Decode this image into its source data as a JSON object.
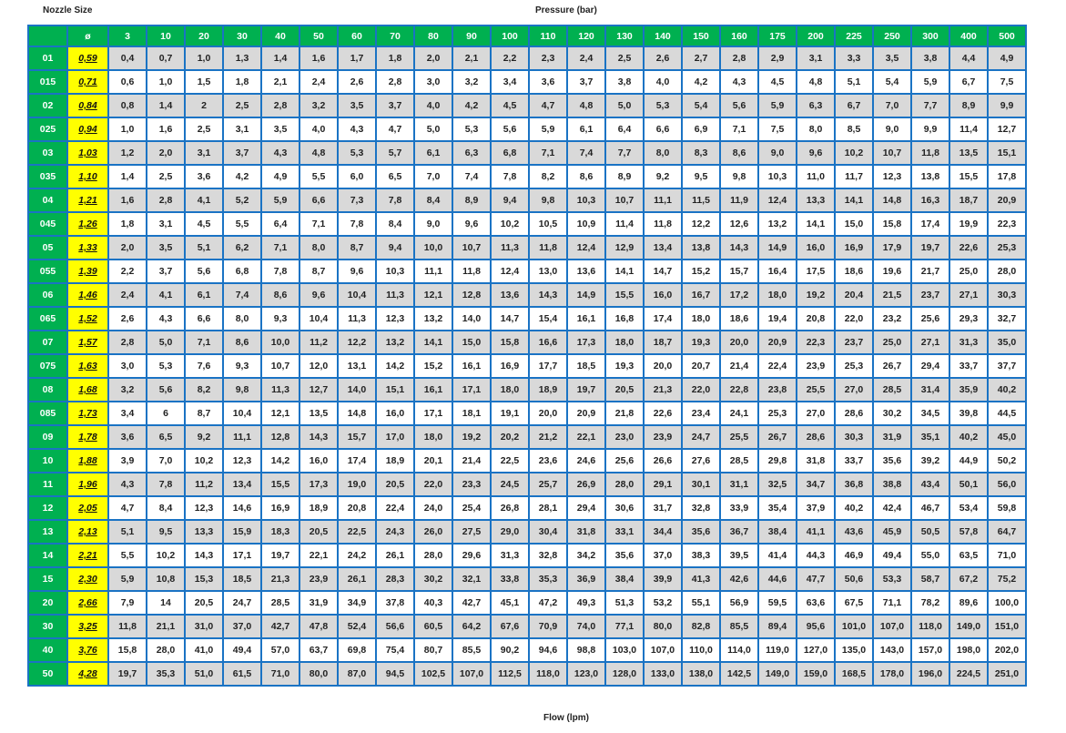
{
  "labels": {
    "nozzle_size": "Nozzle Size",
    "pressure": "Pressure (bar)",
    "flow": "Flow (lpm)",
    "diameter_symbol": "ø"
  },
  "colors": {
    "header_green": "#00b050",
    "diameter_yellow": "#ffff00",
    "grid_blue": "#1a73c4",
    "row_grey": "#d9d9d9"
  },
  "pressures": [
    "3",
    "10",
    "20",
    "30",
    "40",
    "50",
    "60",
    "70",
    "80",
    "90",
    "100",
    "110",
    "120",
    "130",
    "140",
    "150",
    "160",
    "175",
    "200",
    "225",
    "250",
    "300",
    "400",
    "500"
  ],
  "rows": [
    {
      "nozzle": "01",
      "diameter": "0,59",
      "flows": [
        "0,4",
        "0,7",
        "1,0",
        "1,3",
        "1,4",
        "1,6",
        "1,7",
        "1,8",
        "2,0",
        "2,1",
        "2,2",
        "2,3",
        "2,4",
        "2,5",
        "2,6",
        "2,7",
        "2,8",
        "2,9",
        "3,1",
        "3,3",
        "3,5",
        "3,8",
        "4,4",
        "4,9"
      ]
    },
    {
      "nozzle": "015",
      "diameter": "0,71",
      "flows": [
        "0,6",
        "1,0",
        "1,5",
        "1,8",
        "2,1",
        "2,4",
        "2,6",
        "2,8",
        "3,0",
        "3,2",
        "3,4",
        "3,6",
        "3,7",
        "3,8",
        "4,0",
        "4,2",
        "4,3",
        "4,5",
        "4,8",
        "5,1",
        "5,4",
        "5,9",
        "6,7",
        "7,5"
      ]
    },
    {
      "nozzle": "02",
      "diameter": "0,84",
      "flows": [
        "0,8",
        "1,4",
        "2",
        "2,5",
        "2,8",
        "3,2",
        "3,5",
        "3,7",
        "4,0",
        "4,2",
        "4,5",
        "4,7",
        "4,8",
        "5,0",
        "5,3",
        "5,4",
        "5,6",
        "5,9",
        "6,3",
        "6,7",
        "7,0",
        "7,7",
        "8,9",
        "9,9"
      ]
    },
    {
      "nozzle": "025",
      "diameter": "0,94",
      "flows": [
        "1,0",
        "1,6",
        "2,5",
        "3,1",
        "3,5",
        "4,0",
        "4,3",
        "4,7",
        "5,0",
        "5,3",
        "5,6",
        "5,9",
        "6,1",
        "6,4",
        "6,6",
        "6,9",
        "7,1",
        "7,5",
        "8,0",
        "8,5",
        "9,0",
        "9,9",
        "11,4",
        "12,7"
      ]
    },
    {
      "nozzle": "03",
      "diameter": "1,03",
      "flows": [
        "1,2",
        "2,0",
        "3,1",
        "3,7",
        "4,3",
        "4,8",
        "5,3",
        "5,7",
        "6,1",
        "6,3",
        "6,8",
        "7,1",
        "7,4",
        "7,7",
        "8,0",
        "8,3",
        "8,6",
        "9,0",
        "9,6",
        "10,2",
        "10,7",
        "11,8",
        "13,5",
        "15,1"
      ]
    },
    {
      "nozzle": "035",
      "diameter": "1,10",
      "flows": [
        "1,4",
        "2,5",
        "3,6",
        "4,2",
        "4,9",
        "5,5",
        "6,0",
        "6,5",
        "7,0",
        "7,4",
        "7,8",
        "8,2",
        "8,6",
        "8,9",
        "9,2",
        "9,5",
        "9,8",
        "10,3",
        "11,0",
        "11,7",
        "12,3",
        "13,8",
        "15,5",
        "17,8"
      ]
    },
    {
      "nozzle": "04",
      "diameter": "1,21",
      "flows": [
        "1,6",
        "2,8",
        "4,1",
        "5,2",
        "5,9",
        "6,6",
        "7,3",
        "7,8",
        "8,4",
        "8,9",
        "9,4",
        "9,8",
        "10,3",
        "10,7",
        "11,1",
        "11,5",
        "11,9",
        "12,4",
        "13,3",
        "14,1",
        "14,8",
        "16,3",
        "18,7",
        "20,9"
      ]
    },
    {
      "nozzle": "045",
      "diameter": "1,26",
      "flows": [
        "1,8",
        "3,1",
        "4,5",
        "5,5",
        "6,4",
        "7,1",
        "7,8",
        "8,4",
        "9,0",
        "9,6",
        "10,2",
        "10,5",
        "10,9",
        "11,4",
        "11,8",
        "12,2",
        "12,6",
        "13,2",
        "14,1",
        "15,0",
        "15,8",
        "17,4",
        "19,9",
        "22,3"
      ]
    },
    {
      "nozzle": "05",
      "diameter": "1,33",
      "flows": [
        "2,0",
        "3,5",
        "5,1",
        "6,2",
        "7,1",
        "8,0",
        "8,7",
        "9,4",
        "10,0",
        "10,7",
        "11,3",
        "11,8",
        "12,4",
        "12,9",
        "13,4",
        "13,8",
        "14,3",
        "14,9",
        "16,0",
        "16,9",
        "17,9",
        "19,7",
        "22,6",
        "25,3"
      ]
    },
    {
      "nozzle": "055",
      "diameter": "1,39",
      "flows": [
        "2,2",
        "3,7",
        "5,6",
        "6,8",
        "7,8",
        "8,7",
        "9,6",
        "10,3",
        "11,1",
        "11,8",
        "12,4",
        "13,0",
        "13,6",
        "14,1",
        "14,7",
        "15,2",
        "15,7",
        "16,4",
        "17,5",
        "18,6",
        "19,6",
        "21,7",
        "25,0",
        "28,0"
      ]
    },
    {
      "nozzle": "06",
      "diameter": "1,46",
      "flows": [
        "2,4",
        "4,1",
        "6,1",
        "7,4",
        "8,6",
        "9,6",
        "10,4",
        "11,3",
        "12,1",
        "12,8",
        "13,6",
        "14,3",
        "14,9",
        "15,5",
        "16,0",
        "16,7",
        "17,2",
        "18,0",
        "19,2",
        "20,4",
        "21,5",
        "23,7",
        "27,1",
        "30,3"
      ]
    },
    {
      "nozzle": "065",
      "diameter": "1,52",
      "flows": [
        "2,6",
        "4,3",
        "6,6",
        "8,0",
        "9,3",
        "10,4",
        "11,3",
        "12,3",
        "13,2",
        "14,0",
        "14,7",
        "15,4",
        "16,1",
        "16,8",
        "17,4",
        "18,0",
        "18,6",
        "19,4",
        "20,8",
        "22,0",
        "23,2",
        "25,6",
        "29,3",
        "32,7"
      ]
    },
    {
      "nozzle": "07",
      "diameter": "1,57",
      "flows": [
        "2,8",
        "5,0",
        "7,1",
        "8,6",
        "10,0",
        "11,2",
        "12,2",
        "13,2",
        "14,1",
        "15,0",
        "15,8",
        "16,6",
        "17,3",
        "18,0",
        "18,7",
        "19,3",
        "20,0",
        "20,9",
        "22,3",
        "23,7",
        "25,0",
        "27,1",
        "31,3",
        "35,0"
      ]
    },
    {
      "nozzle": "075",
      "diameter": "1,63",
      "flows": [
        "3,0",
        "5,3",
        "7,6",
        "9,3",
        "10,7",
        "12,0",
        "13,1",
        "14,2",
        "15,2",
        "16,1",
        "16,9",
        "17,7",
        "18,5",
        "19,3",
        "20,0",
        "20,7",
        "21,4",
        "22,4",
        "23,9",
        "25,3",
        "26,7",
        "29,4",
        "33,7",
        "37,7"
      ]
    },
    {
      "nozzle": "08",
      "diameter": "1,68",
      "flows": [
        "3,2",
        "5,6",
        "8,2",
        "9,8",
        "11,3",
        "12,7",
        "14,0",
        "15,1",
        "16,1",
        "17,1",
        "18,0",
        "18,9",
        "19,7",
        "20,5",
        "21,3",
        "22,0",
        "22,8",
        "23,8",
        "25,5",
        "27,0",
        "28,5",
        "31,4",
        "35,9",
        "40,2"
      ]
    },
    {
      "nozzle": "085",
      "diameter": "1,73",
      "flows": [
        "3,4",
        "6",
        "8,7",
        "10,4",
        "12,1",
        "13,5",
        "14,8",
        "16,0",
        "17,1",
        "18,1",
        "19,1",
        "20,0",
        "20,9",
        "21,8",
        "22,6",
        "23,4",
        "24,1",
        "25,3",
        "27,0",
        "28,6",
        "30,2",
        "34,5",
        "39,8",
        "44,5"
      ]
    },
    {
      "nozzle": "09",
      "diameter": "1,78",
      "flows": [
        "3,6",
        "6,5",
        "9,2",
        "11,1",
        "12,8",
        "14,3",
        "15,7",
        "17,0",
        "18,0",
        "19,2",
        "20,2",
        "21,2",
        "22,1",
        "23,0",
        "23,9",
        "24,7",
        "25,5",
        "26,7",
        "28,6",
        "30,3",
        "31,9",
        "35,1",
        "40,2",
        "45,0"
      ]
    },
    {
      "nozzle": "10",
      "diameter": "1,88",
      "flows": [
        "3,9",
        "7,0",
        "10,2",
        "12,3",
        "14,2",
        "16,0",
        "17,4",
        "18,9",
        "20,1",
        "21,4",
        "22,5",
        "23,6",
        "24,6",
        "25,6",
        "26,6",
        "27,6",
        "28,5",
        "29,8",
        "31,8",
        "33,7",
        "35,6",
        "39,2",
        "44,9",
        "50,2"
      ]
    },
    {
      "nozzle": "11",
      "diameter": "1,96",
      "flows": [
        "4,3",
        "7,8",
        "11,2",
        "13,4",
        "15,5",
        "17,3",
        "19,0",
        "20,5",
        "22,0",
        "23,3",
        "24,5",
        "25,7",
        "26,9",
        "28,0",
        "29,1",
        "30,1",
        "31,1",
        "32,5",
        "34,7",
        "36,8",
        "38,8",
        "43,4",
        "50,1",
        "56,0"
      ]
    },
    {
      "nozzle": "12",
      "diameter": "2,05",
      "flows": [
        "4,7",
        "8,4",
        "12,3",
        "14,6",
        "16,9",
        "18,9",
        "20,8",
        "22,4",
        "24,0",
        "25,4",
        "26,8",
        "28,1",
        "29,4",
        "30,6",
        "31,7",
        "32,8",
        "33,9",
        "35,4",
        "37,9",
        "40,2",
        "42,4",
        "46,7",
        "53,4",
        "59,8"
      ]
    },
    {
      "nozzle": "13",
      "diameter": "2,13",
      "flows": [
        "5,1",
        "9,5",
        "13,3",
        "15,9",
        "18,3",
        "20,5",
        "22,5",
        "24,3",
        "26,0",
        "27,5",
        "29,0",
        "30,4",
        "31,8",
        "33,1",
        "34,4",
        "35,6",
        "36,7",
        "38,4",
        "41,1",
        "43,6",
        "45,9",
        "50,5",
        "57,8",
        "64,7"
      ]
    },
    {
      "nozzle": "14",
      "diameter": "2,21",
      "flows": [
        "5,5",
        "10,2",
        "14,3",
        "17,1",
        "19,7",
        "22,1",
        "24,2",
        "26,1",
        "28,0",
        "29,6",
        "31,3",
        "32,8",
        "34,2",
        "35,6",
        "37,0",
        "38,3",
        "39,5",
        "41,4",
        "44,3",
        "46,9",
        "49,4",
        "55,0",
        "63,5",
        "71,0"
      ]
    },
    {
      "nozzle": "15",
      "diameter": "2,30",
      "flows": [
        "5,9",
        "10,8",
        "15,3",
        "18,5",
        "21,3",
        "23,9",
        "26,1",
        "28,3",
        "30,2",
        "32,1",
        "33,8",
        "35,3",
        "36,9",
        "38,4",
        "39,9",
        "41,3",
        "42,6",
        "44,6",
        "47,7",
        "50,6",
        "53,3",
        "58,7",
        "67,2",
        "75,2"
      ]
    },
    {
      "nozzle": "20",
      "diameter": "2,66",
      "flows": [
        "7,9",
        "14",
        "20,5",
        "24,7",
        "28,5",
        "31,9",
        "34,9",
        "37,8",
        "40,3",
        "42,7",
        "45,1",
        "47,2",
        "49,3",
        "51,3",
        "53,2",
        "55,1",
        "56,9",
        "59,5",
        "63,6",
        "67,5",
        "71,1",
        "78,2",
        "89,6",
        "100,0"
      ]
    },
    {
      "nozzle": "30",
      "diameter": "3,25",
      "flows": [
        "11,8",
        "21,1",
        "31,0",
        "37,0",
        "42,7",
        "47,8",
        "52,4",
        "56,6",
        "60,5",
        "64,2",
        "67,6",
        "70,9",
        "74,0",
        "77,1",
        "80,0",
        "82,8",
        "85,5",
        "89,4",
        "95,6",
        "101,0",
        "107,0",
        "118,0",
        "149,0",
        "151,0"
      ]
    },
    {
      "nozzle": "40",
      "diameter": "3,76",
      "flows": [
        "15,8",
        "28,0",
        "41,0",
        "49,4",
        "57,0",
        "63,7",
        "69,8",
        "75,4",
        "80,7",
        "85,5",
        "90,2",
        "94,6",
        "98,8",
        "103,0",
        "107,0",
        "110,0",
        "114,0",
        "119,0",
        "127,0",
        "135,0",
        "143,0",
        "157,0",
        "198,0",
        "202,0"
      ]
    },
    {
      "nozzle": "50",
      "diameter": "4,28",
      "flows": [
        "19,7",
        "35,3",
        "51,0",
        "61,5",
        "71,0",
        "80,0",
        "87,0",
        "94,5",
        "102,5",
        "107,0",
        "112,5",
        "118,0",
        "123,0",
        "128,0",
        "133,0",
        "138,0",
        "142,5",
        "149,0",
        "159,0",
        "168,5",
        "178,0",
        "196,0",
        "224,5",
        "251,0"
      ]
    }
  ]
}
